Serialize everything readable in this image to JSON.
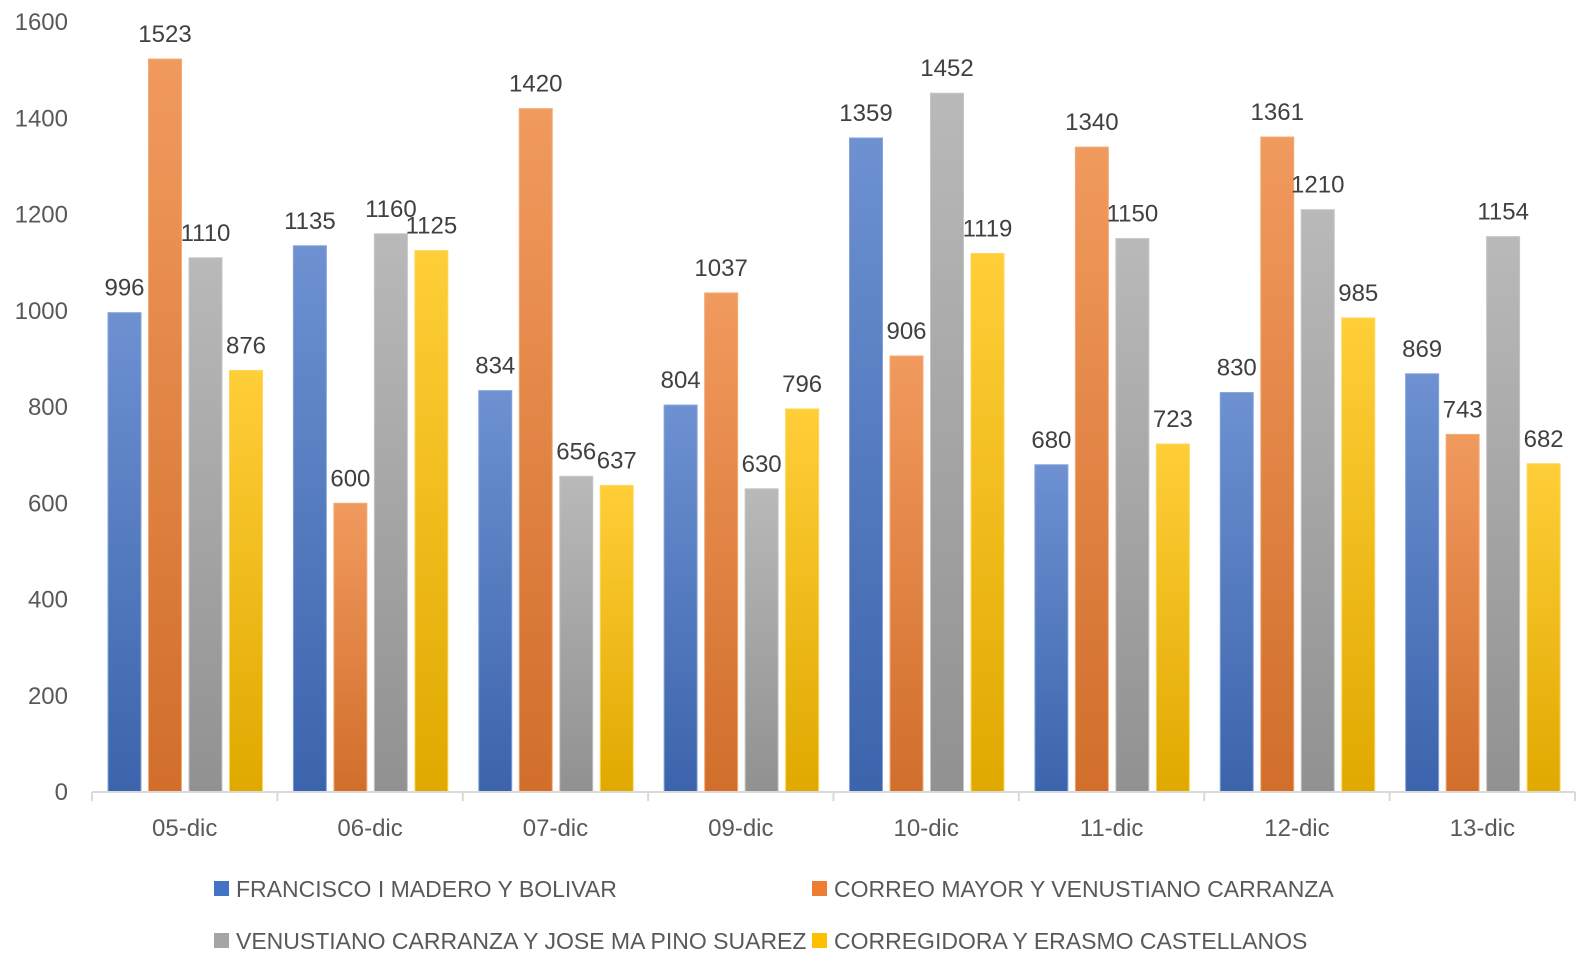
{
  "chart_data": {
    "type": "bar",
    "title": "",
    "xlabel": "",
    "ylabel": "",
    "ylim": [
      0,
      1600
    ],
    "yticks": [
      0,
      200,
      400,
      600,
      800,
      1000,
      1200,
      1400,
      1600
    ],
    "grid": false,
    "legend_position": "bottom",
    "categories": [
      "05-dic",
      "06-dic",
      "07-dic",
      "09-dic",
      "10-dic",
      "11-dic",
      "12-dic",
      "13-dic"
    ],
    "series": [
      {
        "name": "FRANCISCO I MADERO Y BOLIVAR",
        "color": "#4472C4",
        "values": [
          996,
          1135,
          834,
          804,
          1359,
          680,
          830,
          869
        ]
      },
      {
        "name": "CORREO MAYOR Y VENUSTIANO CARRANZA",
        "color": "#ED7D31",
        "values": [
          1523,
          600,
          1420,
          1037,
          906,
          1340,
          1361,
          743
        ]
      },
      {
        "name": "VENUSTIANO CARRANZA Y JOSE MA PINO SUAREZ",
        "color": "#A5A5A5",
        "values": [
          1110,
          1160,
          656,
          630,
          1452,
          1150,
          1210,
          1154
        ]
      },
      {
        "name": "CORREGIDORA Y ERASMO CASTELLANOS",
        "color": "#FFC000",
        "values": [
          876,
          1125,
          637,
          796,
          1119,
          723,
          985,
          682
        ]
      }
    ]
  }
}
